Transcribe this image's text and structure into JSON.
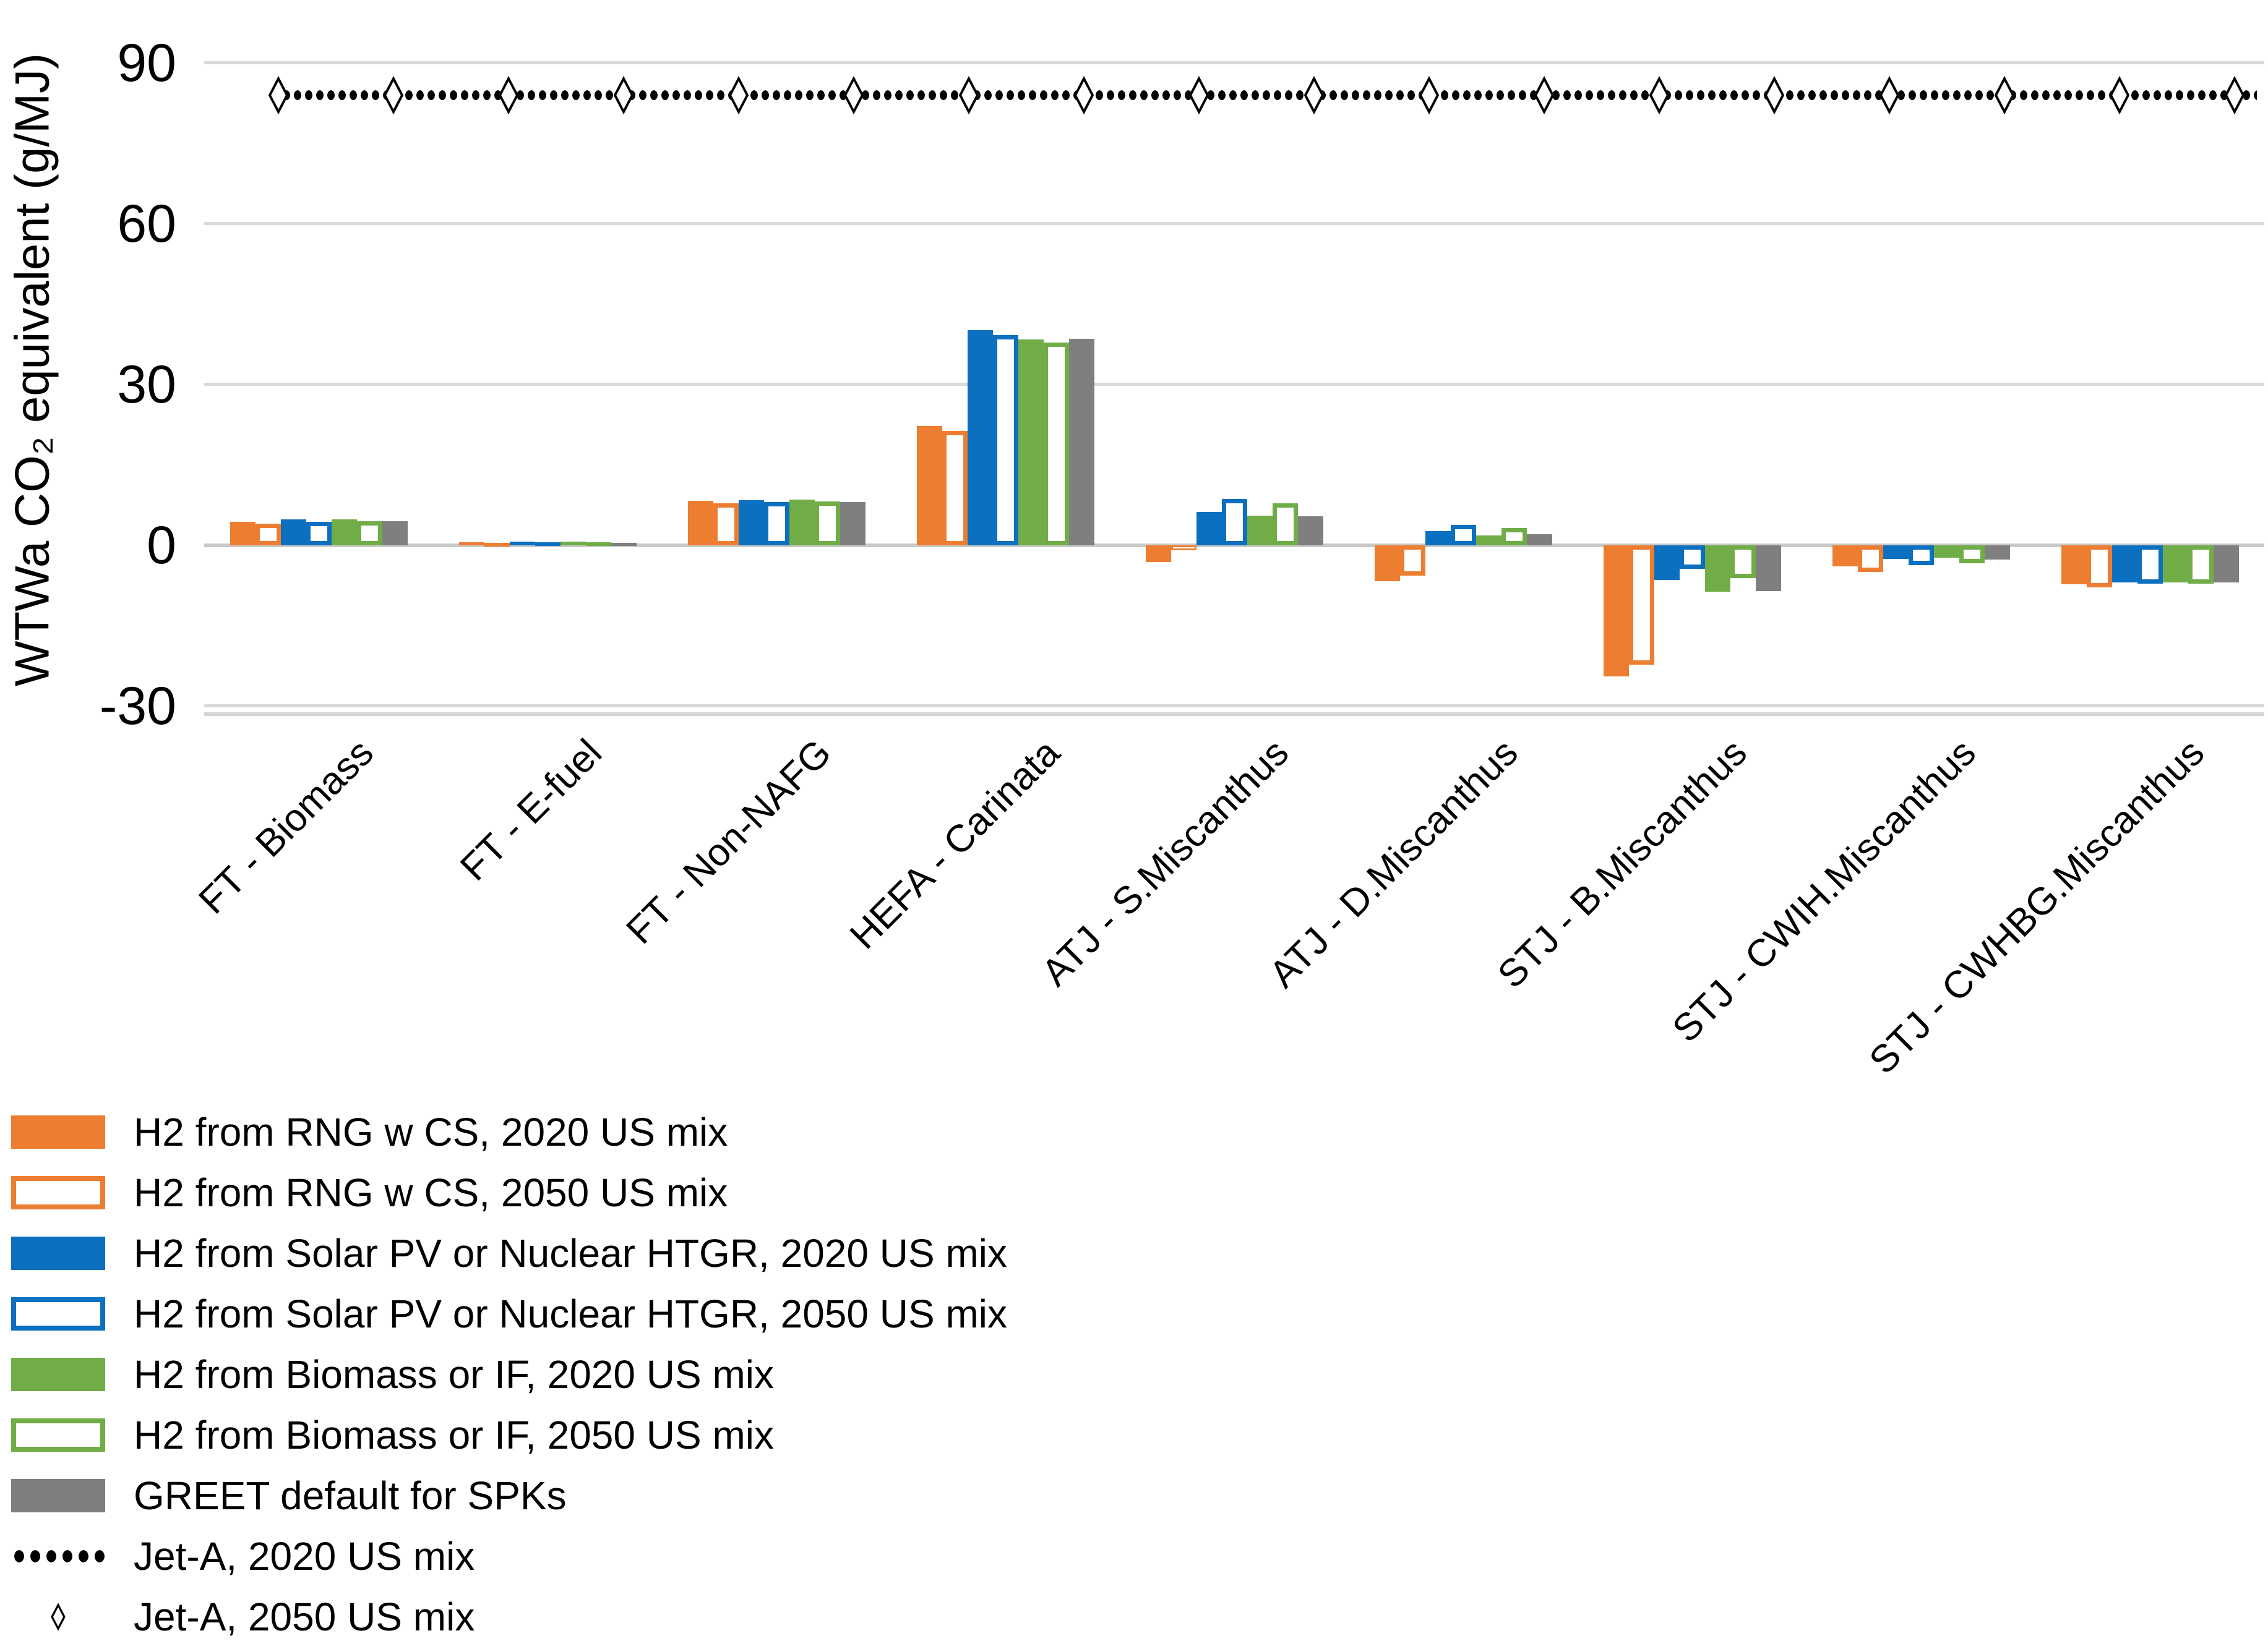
{
  "chart_data": {
    "type": "bar",
    "title": "",
    "y_axis": {
      "title": "WTWa CO₂ equivalent (g/MJ)",
      "ticks": [
        90,
        60,
        30,
        0,
        -30
      ],
      "range": [
        -30,
        98
      ],
      "grid": true
    },
    "categories": [
      "FT - Biomass",
      "FT - E-fuel",
      "FT - Non-NAFG",
      "HEFA - Carinata",
      "ATJ - S.Miscanthus",
      "ATJ - D.Miscanthus",
      "STJ - B.Miscanthus",
      "STJ - CWIH.Miscanthus",
      "STJ - CWHBG.Miscanthus"
    ],
    "series": [
      {
        "name": "H2 from RNG w CS, 2020 US mix",
        "fill": "solid",
        "color": "#ED7D31",
        "values": [
          4.4,
          0.6,
          8.3,
          22.3,
          -3.1,
          -6.7,
          -24.5,
          -3.9,
          -7.3
        ]
      },
      {
        "name": "H2 from RNG w CS, 2050 US mix",
        "fill": "hollow",
        "color": "#ED7D31",
        "values": [
          4.0,
          0.5,
          7.9,
          21.3,
          -0.9,
          -5.6,
          -22.3,
          -5.0,
          -7.9
        ]
      },
      {
        "name": "H2 from Solar PV or Nuclear HTGR, 2020 US mix",
        "fill": "solid",
        "color": "#0C70C0",
        "values": [
          4.8,
          0.7,
          8.4,
          40.1,
          6.2,
          2.6,
          -6.5,
          -2.5,
          -6.9
        ]
      },
      {
        "name": "H2 from Solar PV or Nuclear HTGR, 2050 US mix",
        "fill": "hollow",
        "color": "#0C70C0",
        "values": [
          4.4,
          0.6,
          8.1,
          39.2,
          8.6,
          3.8,
          -4.4,
          -3.7,
          -7.1
        ]
      },
      {
        "name": "H2 from Biomass or IF, 2020 US mix",
        "fill": "solid",
        "color": "#70AD47",
        "values": [
          4.9,
          0.7,
          8.5,
          38.4,
          5.5,
          1.9,
          -8.6,
          -2.3,
          -6.9
        ]
      },
      {
        "name": "H2 from Biomass or IF, 2050 US mix",
        "fill": "hollow",
        "color": "#70AD47",
        "values": [
          4.5,
          0.6,
          8.2,
          37.8,
          7.8,
          3.2,
          -6.1,
          -3.4,
          -7.1
        ]
      },
      {
        "name": "GREET default for SPKs",
        "fill": "solid",
        "color": "#7F7F7F",
        "values": [
          4.5,
          0.5,
          8.1,
          38.5,
          5.4,
          2.1,
          -8.5,
          -2.7,
          -6.9
        ]
      }
    ],
    "reference_lines": [
      {
        "name": "Jet-A, 2020 US mix",
        "style": "dotted",
        "color": "#000000",
        "value": 84
      },
      {
        "name": "Jet-A, 2050 US mix",
        "style": "diamond",
        "color": "#000000",
        "value": 84
      }
    ],
    "legend_position": "bottom-left"
  }
}
